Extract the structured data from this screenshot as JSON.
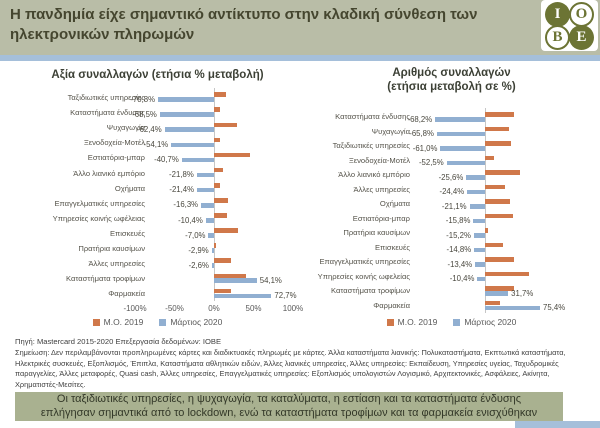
{
  "header": {
    "title": "Η πανδημία είχε σημαντικό αντίκτυπο στην κλαδική σύνθεση των ηλεκτρονικών πληρωμών",
    "logo": {
      "letters": [
        "I",
        "O",
        "B",
        "E"
      ],
      "color": "#6C7434"
    }
  },
  "colors": {
    "avg2019": "#D0784A",
    "march2020": "#91AFD1",
    "header_bg": "#B9BDA7",
    "accent_strip": "#A5BFDA",
    "callout_bg": "#A9B190"
  },
  "chart_data": [
    {
      "type": "bar",
      "orientation": "horizontal",
      "title": "Αξία συναλλαγών (ετήσια % μεταβολή)",
      "categories": [
        "Ταξιδιωτικές υπηρεσίες",
        "Καταστήματα ένδυσης",
        "Ψυχαγωγία",
        "Ξενοδοχεία-Μοτέλ",
        "Εστιατόρια-μπαρ",
        "Άλλο λιανικό εμπόριο",
        "Οχήματα",
        "Επαγγελματικές υπηρεσίες",
        "Υπηρεσίες κοινής ωφέλειας",
        "Επισκευές",
        "Πρατήρια καυσίμων",
        "Άλλες υπηρεσίες",
        "Καταστήματα τροφίμων",
        "Φαρμακεία"
      ],
      "series": [
        {
          "name": "Μ.Ο. 2019",
          "estimated": true,
          "values": [
            15,
            8,
            29,
            7,
            45,
            12,
            8,
            18,
            17,
            31,
            3,
            22,
            40,
            21
          ]
        },
        {
          "name": "Μάρτιος 2020",
          "values": [
            -70.8,
            -68.5,
            -62.4,
            -54.1,
            -40.7,
            -21.8,
            -21.4,
            -16.3,
            -10.4,
            -7.0,
            -2.9,
            -2.6,
            54.1,
            72.7
          ],
          "labels": [
            "-70,8%",
            "-68,5%",
            "-62,4%",
            "-54,1%",
            "-40,7%",
            "-21,8%",
            "-21,4%",
            "-16,3%",
            "-10,4%",
            "-7,0%",
            "-2,9%",
            "-2,6%",
            "54,1%",
            "72,7%"
          ]
        }
      ],
      "xlim": [
        -100,
        100
      ],
      "x_ticks": [
        "-100%",
        "-50%",
        "0%",
        "50%",
        "100%"
      ],
      "grid": false,
      "legend": [
        "Μ.Ο. 2019",
        "Μάρτιος 2020"
      ],
      "legend_position": "bottom"
    },
    {
      "type": "bar",
      "orientation": "horizontal",
      "title": "Αριθμός συναλλαγών\n(ετήσια μεταβολή σε %)",
      "categories": [
        "Καταστήματα ένδυσης",
        "Ψυχαγωγία",
        "Ταξιδιωτικές υπηρεσίες",
        "Ξενοδοχεία-Μοτέλ",
        "Άλλο λιανικό εμπόριο",
        "Άλλες υπηρεσίες",
        "Οχήματα",
        "Εστιατόρια-μπαρ",
        "Πρατήρια καυσίμων",
        "Επισκευές",
        "Επαγγελματικές υπηρεσίες",
        "Υπηρεσίες κοινής ωφελείας",
        "Καταστήματα τροφίμων",
        "Φαρμακεία"
      ],
      "series": [
        {
          "name": "Μ.Ο. 2019",
          "estimated": true,
          "values": [
            40,
            33,
            35,
            12,
            48,
            27,
            34,
            38,
            4,
            24,
            40,
            60,
            40,
            20
          ]
        },
        {
          "name": "Μάρτιος 2020",
          "values": [
            -68.2,
            -65.8,
            -61.0,
            -52.5,
            -25.6,
            -24.4,
            -21.1,
            -15.8,
            -15.2,
            -14.8,
            -13.4,
            -10.4,
            31.7,
            75.4
          ],
          "labels": [
            "-68,2%",
            "-65,8%",
            "-61,0%",
            "-52,5%",
            "-25,6%",
            "-24,4%",
            "-21,1%",
            "-15,8%",
            "-15,2%",
            "-14,8%",
            "-13,4%",
            "-10,4%",
            "31,7%",
            "75,4%"
          ]
        }
      ],
      "xlim": [
        -100,
        100
      ],
      "x_ticks": [],
      "grid": false,
      "legend": [
        "Μ.Ο. 2019",
        "Μάρτιος 2020"
      ],
      "legend_position": "bottom"
    }
  ],
  "footer": {
    "source": "Πηγή: Mastercard 2015-2020 Επεξεργασία δεδομένων: ΙΟΒΕ",
    "note": "Σημείωση: Δεν περιλαμβάνονται προπληρωμένες κάρτες και διαδικτυακές πληρωμές με κάρτες. Άλλα καταστήματα λιανικής: Πολυκαταστήματα, Εκπτωτικά καταστήματα, Ηλεκτρικές συσκευές, Εξοπλισμός, Έπιπλα, Καταστήματα αθλητικών ειδών, Άλλες λιανικές υπηρεσίες, Άλλες υπηρεσίες: Εκπαίδευση, Υπηρεσίες υγείας, Ταχυδρομικές παραγγελίες, Άλλες μεταφορές, Quasi cash, Άλλες υπηρεσίες, Επαγγελματικές υπηρεσίες: Εξοπλισμός υπολογιστών Λογισμικό, Αρχιτεκτονικές, Ασφάλειες, Ακίνητα, Χρηματιστές-Μεσίτες."
  },
  "callout": "Οι ταξιδιωτικές υπηρεσίες, η ψυχαγωγία, τα καταλύματα, η εστίαση και τα καταστήματα ένδυσης επλήγησαν σημαντικά από το lockdown, ενώ τα καταστήματα τροφίμων και τα φαρμακεία ενισχύθηκαν"
}
